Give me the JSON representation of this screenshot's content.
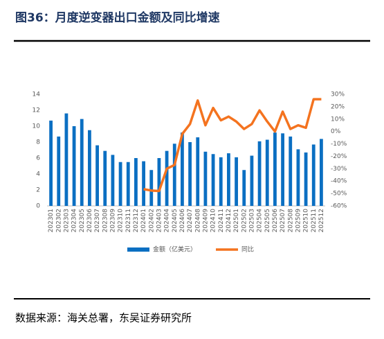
{
  "chart_data": {
    "type": "bar",
    "title": "图36：月度逆变器出口金额及同比增速",
    "source": "数据来源：海关总署，东吴证券研究所",
    "categories": [
      "202301",
      "202302",
      "202303",
      "202304",
      "202305",
      "202306",
      "202307",
      "202308",
      "202309",
      "202310",
      "202311",
      "202312",
      "202401",
      "202402",
      "202403",
      "202404",
      "202405",
      "202406",
      "202407",
      "202408",
      "202409",
      "202410",
      "202411",
      "202412",
      "202501",
      "202502",
      "202503",
      "202504",
      "202505",
      "202506",
      "202507",
      "202508",
      "202509",
      "202510",
      "202511",
      "202512"
    ],
    "series": [
      {
        "name": "金额（亿美元）",
        "type": "bar",
        "color": "#0b6fc2",
        "values": [
          10.7,
          8.7,
          11.6,
          10.0,
          10.9,
          9.5,
          7.6,
          6.9,
          6.4,
          5.5,
          5.5,
          6.0,
          5.6,
          4.5,
          6.0,
          6.9,
          7.8,
          9.2,
          8.0,
          8.6,
          6.8,
          6.5,
          6.1,
          6.6,
          6.1,
          4.5,
          6.3,
          8.1,
          8.3,
          9.2,
          9.1,
          8.7,
          7.1,
          6.7,
          7.7,
          8.4
        ]
      },
      {
        "name": "同比",
        "type": "line",
        "axis": "y2",
        "color": "#f4731f",
        "values": [
          null,
          null,
          null,
          null,
          null,
          null,
          null,
          null,
          null,
          null,
          null,
          null,
          -46.5,
          -47.6,
          -48,
          -30,
          -27,
          -2,
          6,
          25,
          5,
          19,
          9,
          12,
          8,
          2,
          6,
          17,
          8,
          0,
          16,
          2,
          5,
          3,
          26,
          26
        ]
      }
    ],
    "ylim": [
      0,
      14
    ],
    "yticks": [
      0,
      2,
      4,
      6,
      8,
      10,
      12,
      14
    ],
    "y2lim": [
      -60,
      30
    ],
    "y2ticks": [
      {
        "value": 30,
        "label": "30%"
      },
      {
        "value": 20,
        "label": "20%"
      },
      {
        "value": 10,
        "label": "10%"
      },
      {
        "value": 0,
        "label": "0%"
      },
      {
        "value": -10,
        "label": "-10%"
      },
      {
        "value": -20,
        "label": "-20%"
      },
      {
        "value": -30,
        "label": "-30%"
      },
      {
        "value": -40,
        "label": "-40%"
      },
      {
        "value": -50,
        "label": "-50%"
      },
      {
        "value": -60,
        "label": "-60%"
      }
    ],
    "grid": false
  }
}
